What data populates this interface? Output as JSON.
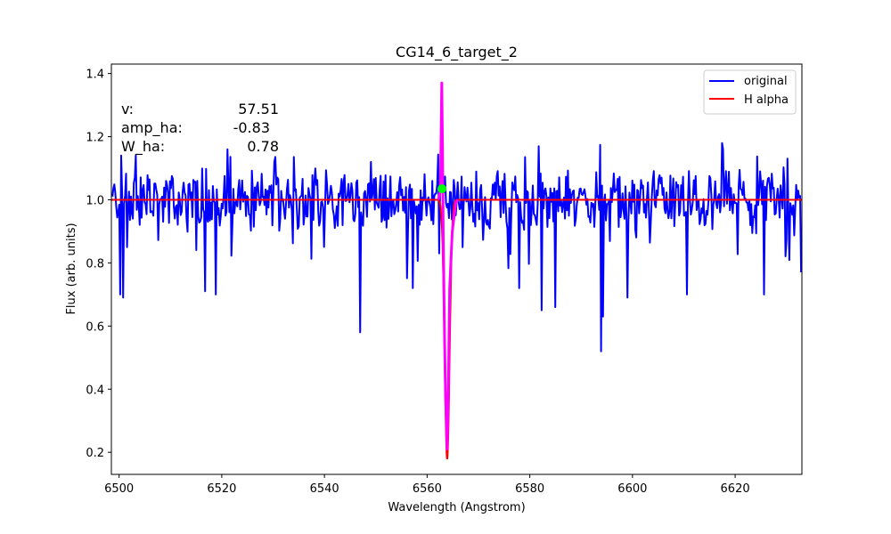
{
  "chart_data": {
    "type": "line",
    "title": "CG14_6_target_2",
    "xlabel": "Wavelength (Angstrom)",
    "ylabel": "Flux (arb. units)",
    "xlim": [
      6498.5,
      6633.0
    ],
    "ylim": [
      0.13,
      1.43
    ],
    "xticks": [
      6500,
      6520,
      6540,
      6560,
      6580,
      6600,
      6620
    ],
    "yticks": [
      0.2,
      0.4,
      0.6,
      0.8,
      1.0,
      1.2,
      1.4
    ],
    "xtick_labels": [
      "6500",
      "6520",
      "6540",
      "6560",
      "6580",
      "6600",
      "6620"
    ],
    "ytick_labels": [
      "0.2",
      "0.4",
      "0.6",
      "0.8",
      "1.0",
      "1.2",
      "1.4"
    ],
    "legend": {
      "placement": "top-right",
      "entries": [
        {
          "label": "original",
          "color": "#0000ff"
        },
        {
          "label": "H alpha",
          "color": "#ff0000"
        }
      ]
    },
    "annotations": [
      {
        "label": "v:",
        "value": "57.51"
      },
      {
        "label": "amp_ha:",
        "value": "-0.83"
      },
      {
        "label": "W_ha:",
        "value": "0.78"
      }
    ],
    "colors": {
      "original": "#0000ff",
      "halpha_fit": "#ff0000",
      "line_region": "#ff00ff",
      "marker": "#00ff00"
    },
    "series": [
      {
        "name": "original",
        "noise_level": 0.07,
        "baseline": 1.0,
        "dips": [
          {
            "x": 6500.3,
            "y": 0.7
          },
          {
            "x": 6500.8,
            "y": 0.69
          },
          {
            "x": 6516.8,
            "y": 0.71
          },
          {
            "x": 6518.8,
            "y": 0.7
          },
          {
            "x": 6547.0,
            "y": 0.58
          },
          {
            "x": 6557.2,
            "y": 0.72
          },
          {
            "x": 6578.0,
            "y": 0.72
          },
          {
            "x": 6582.3,
            "y": 0.65
          },
          {
            "x": 6585.0,
            "y": 0.66
          },
          {
            "x": 6593.8,
            "y": 0.52
          },
          {
            "x": 6594.3,
            "y": 0.63
          },
          {
            "x": 6599.0,
            "y": 0.69
          },
          {
            "x": 6610.7,
            "y": 0.7
          },
          {
            "x": 6625.7,
            "y": 0.7
          },
          {
            "x": 6632.8,
            "y": 0.77
          }
        ],
        "peaks": [
          {
            "x": 6500.5,
            "y": 1.14
          },
          {
            "x": 6503.3,
            "y": 1.14
          },
          {
            "x": 6521.2,
            "y": 1.16
          },
          {
            "x": 6530.3,
            "y": 1.12
          },
          {
            "x": 6549.1,
            "y": 1.12
          },
          {
            "x": 6581.8,
            "y": 1.17
          },
          {
            "x": 6617.6,
            "y": 1.16
          }
        ]
      },
      {
        "name": "H alpha",
        "center": 6563.9,
        "amplitude": -0.83,
        "sigma": 0.48
      }
    ],
    "line_region": {
      "x": [
        6562.2,
        6562.6,
        6562.85,
        6563.0,
        6563.15,
        6563.4,
        6563.6,
        6563.75,
        6563.9,
        6564.1,
        6564.4,
        6564.9,
        6565.6,
        6566.0
      ],
      "y": [
        1.0,
        1.03,
        1.37,
        1.15,
        0.88,
        0.55,
        0.38,
        0.3,
        0.21,
        0.35,
        0.72,
        0.9,
        0.99,
        1.0
      ]
    },
    "marker": {
      "x": 6562.9,
      "y": 1.035
    }
  }
}
